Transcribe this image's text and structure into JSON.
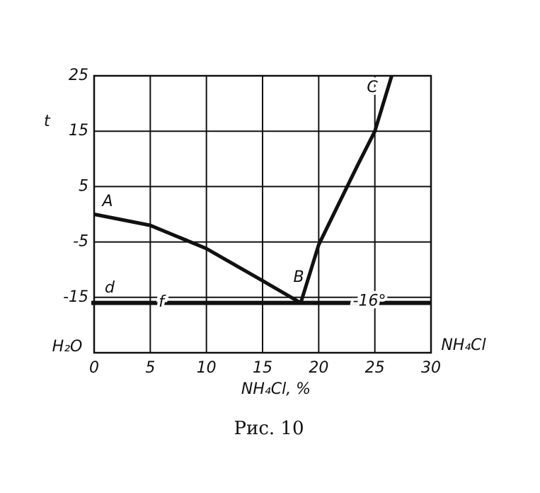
{
  "chart_data": {
    "type": "line",
    "y_label": "t",
    "x_label": "NH₄Cl, %",
    "left_corner_label": "H₂O",
    "right_corner_label": "NH₄Cl",
    "caption": "Рис. 10",
    "xlim": [
      0,
      30
    ],
    "xticks": [
      0,
      5,
      10,
      15,
      20,
      25,
      30
    ],
    "ylim": [
      -25,
      25
    ],
    "yticks": [
      25,
      15,
      5,
      -5,
      -15
    ],
    "grid": true,
    "series": [
      {
        "color": "#111111",
        "x": [
          0,
          5,
          10,
          15,
          18.4
        ],
        "values": [
          0,
          -2,
          -6.2,
          -12,
          -16
        ]
      },
      {
        "color": "#111111",
        "x": [
          18.4,
          20,
          22,
          23.5,
          25,
          26.5
        ],
        "values": [
          -16,
          -5.5,
          2.8,
          9,
          15,
          25
        ]
      }
    ],
    "eutectic": {
      "value": -16,
      "label": "-16°"
    },
    "point_labels": [
      "A",
      "B",
      "C",
      "d",
      "f"
    ]
  }
}
